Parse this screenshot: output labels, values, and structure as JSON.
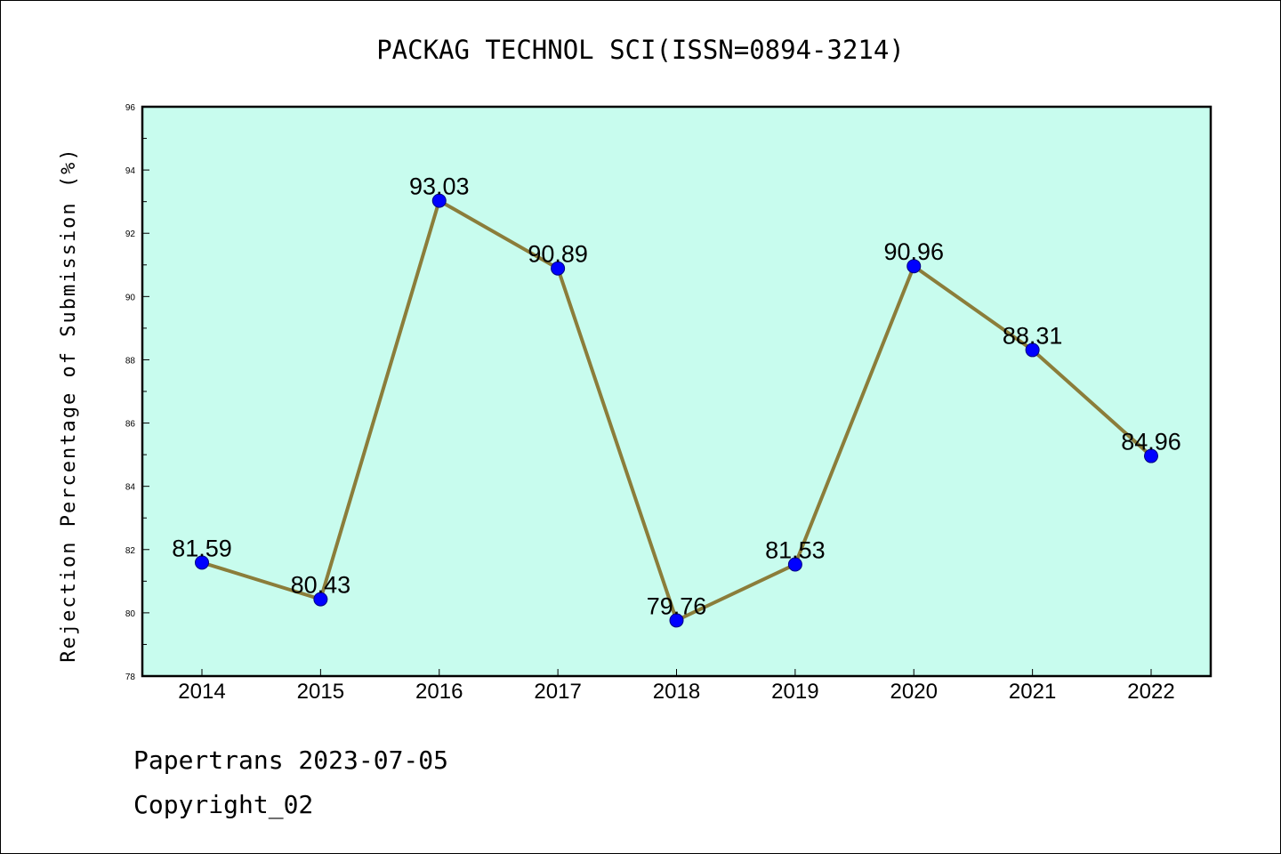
{
  "chart_data": {
    "type": "line",
    "title": "PACKAG TECHNOL SCI(ISSN=0894-3214)",
    "xlabel": "",
    "ylabel": "Rejection Percentage of Submission (%)",
    "categories": [
      "2014",
      "2015",
      "2016",
      "2017",
      "2018",
      "2019",
      "2020",
      "2021",
      "2022"
    ],
    "values": [
      81.59,
      80.43,
      93.03,
      90.89,
      79.76,
      81.53,
      90.96,
      88.31,
      84.96
    ],
    "data_labels": [
      "81.59",
      "80.43",
      "93.03",
      "90.89",
      "79.76",
      "81.53",
      "90.96",
      "88.31",
      "84.96"
    ],
    "ylim": [
      78,
      96
    ],
    "yticks": [
      "78",
      "80",
      "82",
      "84",
      "86",
      "88",
      "90",
      "92",
      "94",
      "96"
    ],
    "grid": false,
    "legend": "none",
    "colors": {
      "plot_background": "#c8fcee",
      "line": "#8b7d3a",
      "marker_fill": "#0000ff",
      "marker_edge": "#000080"
    }
  },
  "footer": {
    "line1": "Papertrans 2023-07-05",
    "line2": "Copyright_02"
  }
}
